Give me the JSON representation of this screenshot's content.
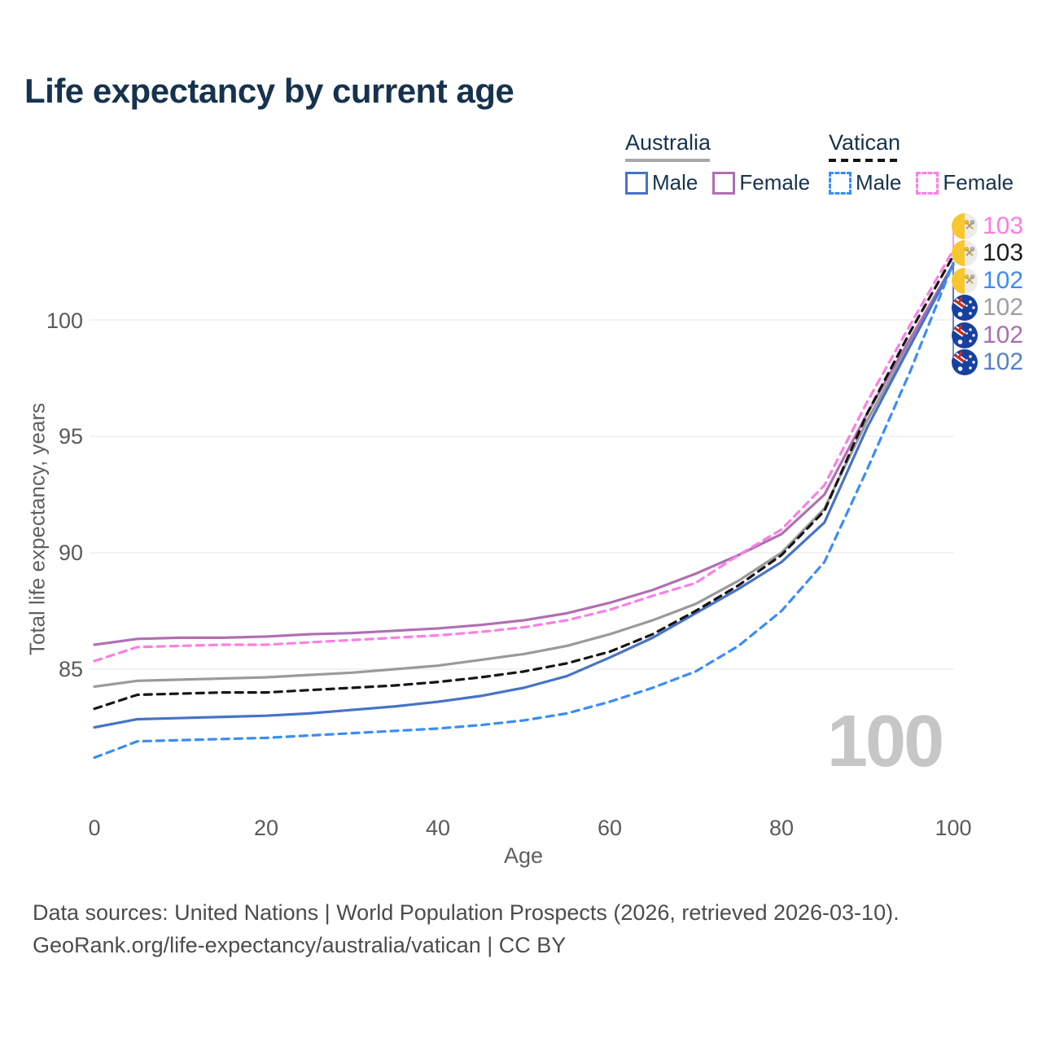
{
  "title": "Life expectancy by current age",
  "legend": {
    "groups": [
      {
        "label": "Australia",
        "line_style": "solid",
        "underline_color": "#a8a8a8",
        "items": [
          {
            "label": "Male",
            "color": "#4673c8"
          },
          {
            "label": "Female",
            "color": "#b06fb2"
          }
        ]
      },
      {
        "label": "Vatican",
        "line_style": "dashed",
        "underline_color": "#141414",
        "items": [
          {
            "label": "Male",
            "color": "#3a8df6"
          },
          {
            "label": "Female",
            "color": "#fc7ee4"
          }
        ]
      }
    ]
  },
  "watermark_age": "100",
  "chart_data": {
    "type": "line",
    "title": "Life expectancy by current age",
    "xlabel": "Age",
    "ylabel": "Total life expectancy, years",
    "x_ticks": [
      0,
      20,
      40,
      60,
      80,
      100
    ],
    "y_ticks": [
      85,
      90,
      95,
      100
    ],
    "x_range": [
      0,
      100
    ],
    "y_range_shown": [
      81,
      103.5
    ],
    "grid": "horizontal",
    "x": [
      0,
      5,
      10,
      15,
      20,
      25,
      30,
      35,
      40,
      45,
      50,
      55,
      60,
      65,
      70,
      75,
      80,
      85,
      90,
      95,
      100
    ],
    "series": [
      {
        "name": "Australia — Both sexes",
        "country": "Australia",
        "sex": "Both",
        "color": "#9a9a9a",
        "dashed": false,
        "label_row": 3,
        "values": [
          84.25,
          84.5,
          84.55,
          84.6,
          84.65,
          84.75,
          84.85,
          85.0,
          85.15,
          85.4,
          85.65,
          86.0,
          86.5,
          87.1,
          87.8,
          88.8,
          90.0,
          91.9,
          95.7,
          99.0,
          102.4
        ]
      },
      {
        "name": "Australia — Female",
        "country": "Australia",
        "sex": "Female",
        "color": "#b06fb2",
        "dashed": false,
        "label_row": 4,
        "values": [
          86.05,
          86.3,
          86.35,
          86.35,
          86.4,
          86.5,
          86.55,
          86.65,
          86.75,
          86.9,
          87.1,
          87.4,
          87.85,
          88.4,
          89.1,
          89.9,
          90.8,
          92.5,
          96.0,
          99.2,
          102.4
        ]
      },
      {
        "name": "Australia — Male",
        "country": "Australia",
        "sex": "Male",
        "color": "#4673c8",
        "dashed": false,
        "label_row": 5,
        "values": [
          82.5,
          82.85,
          82.9,
          82.95,
          83.0,
          83.1,
          83.25,
          83.4,
          83.6,
          83.85,
          84.2,
          84.7,
          85.5,
          86.35,
          87.4,
          88.45,
          89.6,
          91.3,
          95.4,
          98.9,
          102.35
        ]
      },
      {
        "name": "Vatican — Female",
        "country": "Vatican",
        "sex": "Female",
        "color": "#fc7ee4",
        "dashed": true,
        "label_row": 0,
        "values": [
          85.35,
          85.95,
          86.0,
          86.05,
          86.05,
          86.15,
          86.25,
          86.35,
          86.45,
          86.6,
          86.8,
          87.1,
          87.55,
          88.15,
          88.7,
          89.9,
          91.0,
          92.9,
          96.5,
          99.8,
          103.0
        ]
      },
      {
        "name": "Vatican — Both sexes",
        "country": "Vatican",
        "sex": "Both",
        "color": "#161616",
        "dashed": true,
        "label_row": 1,
        "values": [
          83.3,
          83.9,
          83.95,
          84.0,
          84.0,
          84.1,
          84.2,
          84.3,
          84.45,
          84.65,
          84.9,
          85.25,
          85.75,
          86.5,
          87.5,
          88.6,
          89.9,
          91.8,
          96.0,
          99.5,
          102.75
        ]
      },
      {
        "name": "Vatican — Male",
        "country": "Vatican",
        "sex": "Male",
        "color": "#3a8df6",
        "dashed": true,
        "label_row": 2,
        "values": [
          81.2,
          81.9,
          81.95,
          82.0,
          82.05,
          82.15,
          82.25,
          82.35,
          82.45,
          82.6,
          82.8,
          83.1,
          83.6,
          84.2,
          84.9,
          86.0,
          87.5,
          89.6,
          93.6,
          97.8,
          102.45
        ]
      }
    ]
  },
  "end_labels": [
    {
      "value": "103",
      "color": "#fb7de2",
      "flag": "vatican",
      "series": "Vatican — Female"
    },
    {
      "value": "103",
      "color": "#1c1c1c",
      "flag": "vatican",
      "series": "Vatican — Both sexes"
    },
    {
      "value": "102",
      "color": "#3e8bf2",
      "flag": "vatican",
      "series": "Vatican — Male"
    },
    {
      "value": "102",
      "color": "#9e9e9e",
      "flag": "australia",
      "series": "Australia — Both sexes"
    },
    {
      "value": "102",
      "color": "#a86fb0",
      "flag": "australia",
      "series": "Australia — Female"
    },
    {
      "value": "102",
      "color": "#5b7fc6",
      "flag": "australia",
      "series": "Australia — Male"
    }
  ],
  "footer": {
    "line1": "Data sources: United Nations | World Population Prospects (2026, retrieved 2026-03-10).",
    "line2": "GeoRank.org/life-expectancy/australia/vatican | CC BY"
  }
}
